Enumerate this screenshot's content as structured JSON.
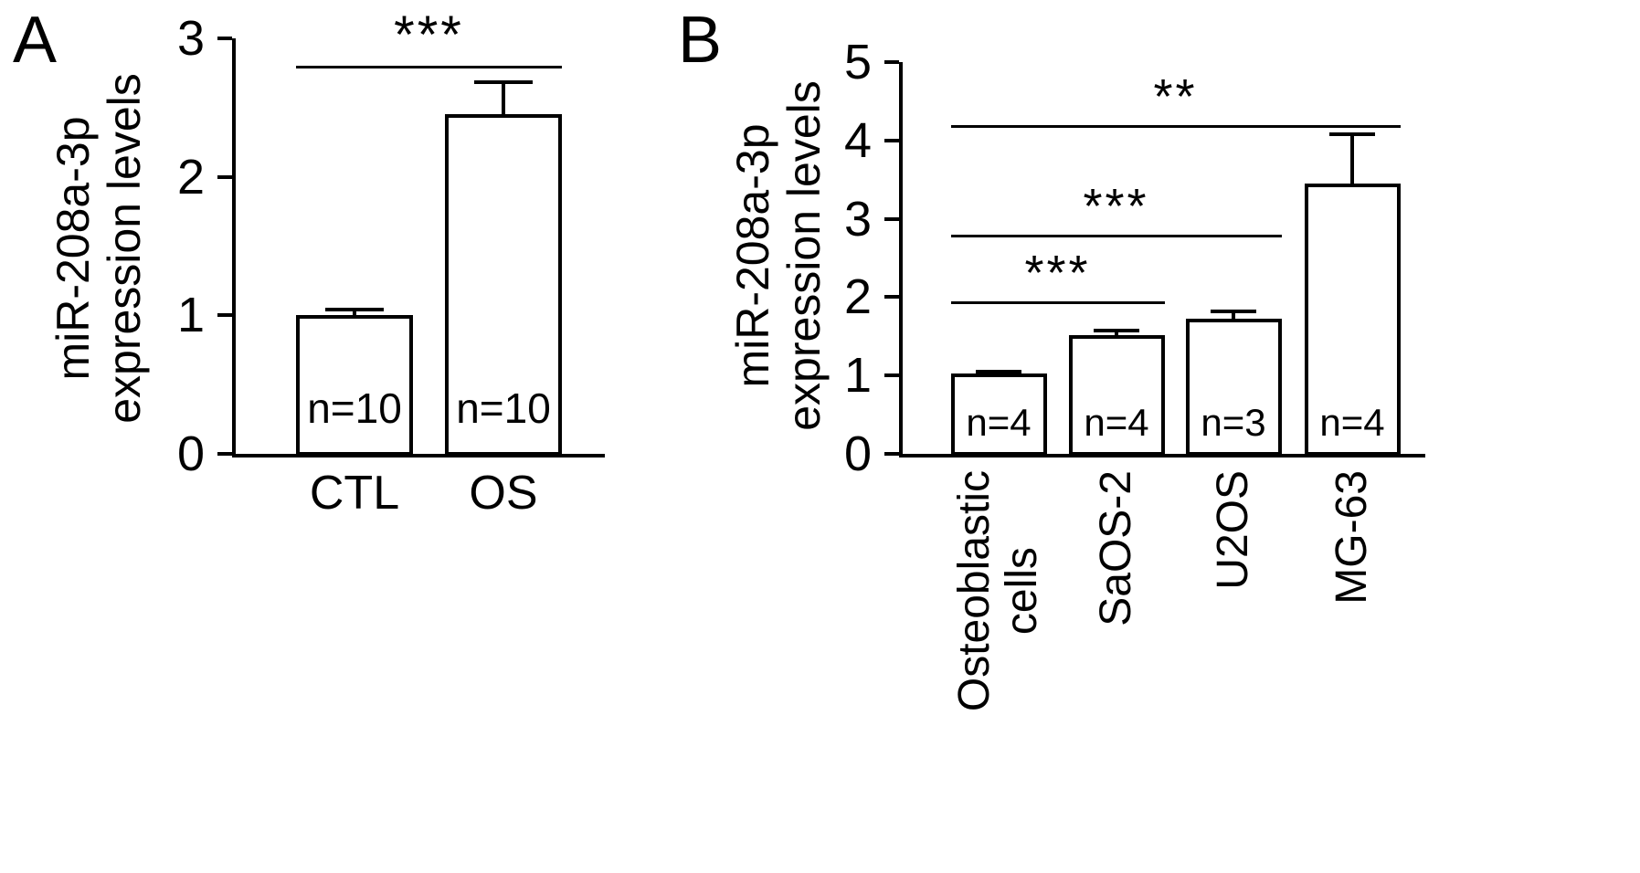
{
  "colors": {
    "ink": "#000000",
    "background": "#ffffff"
  },
  "chart_data": [
    {
      "panel_label": "A",
      "type": "bar",
      "title": "",
      "ylabel_lines": [
        "miR-208a-3p",
        "expression levels"
      ],
      "xlabel": "",
      "ylim": [
        0,
        3
      ],
      "yticks": [
        0,
        1,
        2,
        3
      ],
      "grid": "off",
      "legend": "none",
      "bar_fill": "#ffffff",
      "bar_outline": "#000000",
      "categories": [
        "CTL",
        "OS"
      ],
      "values": [
        1.0,
        2.45
      ],
      "errors": [
        0.04,
        0.23
      ],
      "bar_labels": [
        "n=10",
        "n=10"
      ],
      "significance": [
        {
          "label": "***",
          "from": 0,
          "to": 1,
          "y_value": 2.8
        }
      ]
    },
    {
      "panel_label": "B",
      "type": "bar",
      "title": "",
      "ylabel_lines": [
        "miR-208a-3p",
        "expression levels"
      ],
      "xlabel": "",
      "ylim": [
        0,
        5
      ],
      "yticks": [
        0,
        1,
        2,
        3,
        4,
        5
      ],
      "grid": "off",
      "legend": "none",
      "bar_fill": "#ffffff",
      "bar_outline": "#000000",
      "categories": [
        "Osteoblastic\ncells",
        "SaOS-2",
        "U2OS",
        "MG-63"
      ],
      "values": [
        1.02,
        1.52,
        1.72,
        3.45
      ],
      "errors": [
        0.03,
        0.05,
        0.1,
        0.63
      ],
      "bar_labels": [
        "n=4",
        "n=4",
        "n=3",
        "n=4"
      ],
      "significance": [
        {
          "label": "***",
          "from": 0,
          "to": 1,
          "y_value": 1.95
        },
        {
          "label": "***",
          "from": 0,
          "to": 2,
          "y_value": 2.8
        },
        {
          "label": "**",
          "from": 0,
          "to": 3,
          "y_value": 4.2
        }
      ]
    }
  ]
}
